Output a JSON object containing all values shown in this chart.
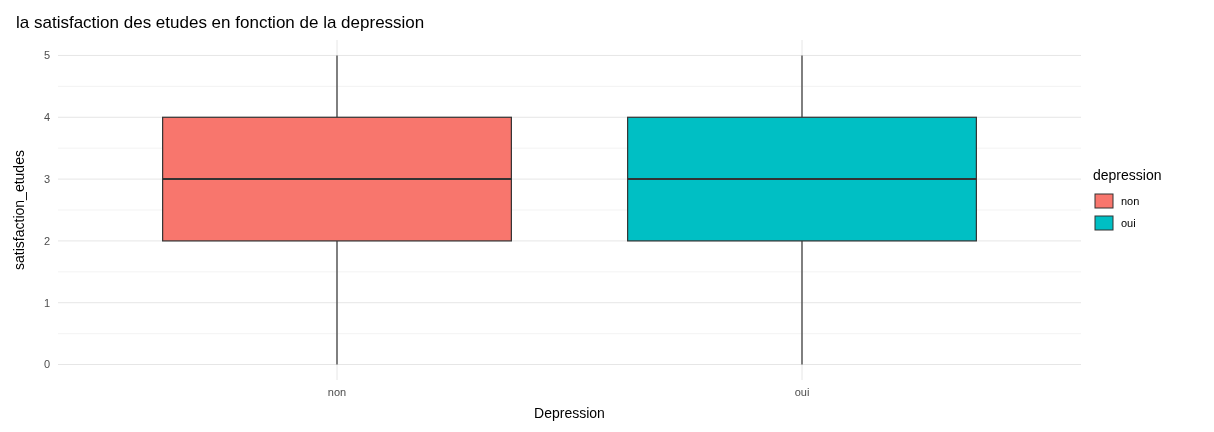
{
  "chart_data": {
    "type": "box",
    "title": "la satisfaction des etudes en fonction de la depression",
    "xlabel": "Depression",
    "ylabel": "satisfaction_etudes",
    "legend_title": "depression",
    "categories": [
      "non",
      "oui"
    ],
    "series": [
      {
        "name": "non",
        "color": "#f8766d",
        "boxes": [
          {
            "low": 0,
            "q1": 2,
            "median": 3,
            "q3": 4,
            "high": 5
          },
          null
        ]
      },
      {
        "name": "oui",
        "color": "#00bfc4",
        "boxes": [
          null,
          {
            "low": 0,
            "q1": 2,
            "median": 3,
            "q3": 4,
            "high": 5
          }
        ]
      }
    ],
    "ylim": [
      -0.25,
      5.25
    ],
    "yticks": [
      0,
      1,
      2,
      3,
      4,
      5
    ],
    "grid": true,
    "legend": "right"
  }
}
